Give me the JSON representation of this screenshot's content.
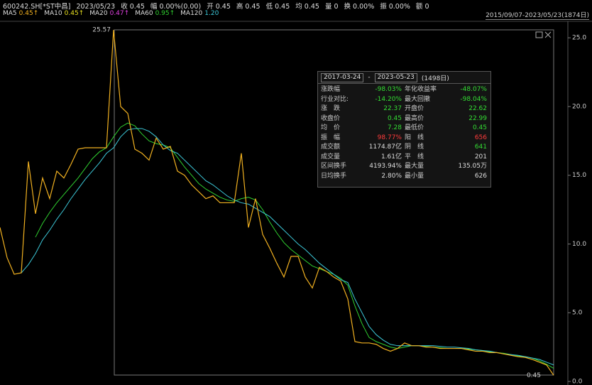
{
  "quote_bar": [
    "600242.SH[*ST中昌]",
    "2023/05/23",
    "收 0.45",
    "幅 0.00%(0.00)",
    "开 0.45",
    "高 0.45",
    "低 0.45",
    "均 0.45",
    "量 0",
    "换 0.00%",
    "振 0.00%",
    "额 0"
  ],
  "range_label": "2015/09/07-2023/05/23(1874日)",
  "stats_panel": {
    "start": "2017-03-24",
    "end": "2023-05-23",
    "days": "(1498日)",
    "cells": [
      {
        "label": "涨跌幅",
        "value": "-98.03%",
        "color": "#33dd33"
      },
      {
        "label": "年化收益率",
        "value": "-48.07%",
        "color": "#33dd33"
      },
      {
        "label": "行业对比:",
        "value": "-14.20%",
        "color": "#33dd33"
      },
      {
        "label": "最大回撤",
        "value": "-98.04%",
        "color": "#33dd33"
      },
      {
        "label": "涨　跌",
        "value": "22.37",
        "color": "#33dd33"
      },
      {
        "label": "开盘价",
        "value": "22.62",
        "color": "#33dd33"
      },
      {
        "label": "收盘价",
        "value": "0.45",
        "color": "#33dd33"
      },
      {
        "label": "最高价",
        "value": "22.99",
        "color": "#33dd33"
      },
      {
        "label": "均　价",
        "value": "7.28",
        "color": "#33dd33"
      },
      {
        "label": "最低价",
        "value": "0.45",
        "color": "#33dd33"
      },
      {
        "label": "振　幅",
        "value": "98.77%",
        "color": "#ff3b3b"
      },
      {
        "label": "阳　线",
        "value": "656",
        "color": "#ff3b3b"
      },
      {
        "label": "成交额",
        "value": "1174.87亿",
        "color": "#dddddd"
      },
      {
        "label": "阴　线",
        "value": "641",
        "color": "#33dd33"
      },
      {
        "label": "成交量",
        "value": "1.61亿",
        "color": "#dddddd"
      },
      {
        "label": "平　线",
        "value": "201",
        "color": "#dddddd"
      },
      {
        "label": "区间换手",
        "value": "4193.94%",
        "color": "#dddddd"
      },
      {
        "label": "最大量",
        "value": "135.05万",
        "color": "#dddddd"
      },
      {
        "label": "日均换手",
        "value": "2.80%",
        "color": "#dddddd"
      },
      {
        "label": "最小量",
        "value": "626",
        "color": "#dddddd"
      }
    ]
  },
  "chart_data": {
    "type": "line",
    "color": "#f0b020",
    "values": [
      11.2,
      9.0,
      7.8,
      7.9,
      16.0,
      12.2,
      14.8,
      13.3,
      15.3,
      14.8,
      15.8,
      16.9,
      17.0,
      17.0,
      17.0,
      17.0,
      25.57,
      20.0,
      19.5,
      16.9,
      16.6,
      16.1,
      17.7,
      16.9,
      17.1,
      15.3,
      15.0,
      14.3,
      13.8,
      13.3,
      13.5,
      13.0,
      13.0,
      13.0,
      16.6,
      11.2,
      13.3,
      10.7,
      9.7,
      8.6,
      7.6,
      9.1,
      9.1,
      7.6,
      6.8,
      8.3,
      8.0,
      7.6,
      7.3,
      6.0,
      2.9,
      2.8,
      2.8,
      2.7,
      2.4,
      2.2,
      2.4,
      2.8,
      2.6,
      2.6,
      2.5,
      2.5,
      2.4,
      2.4,
      2.4,
      2.4,
      2.3,
      2.2,
      2.2,
      2.1,
      2.1,
      2.0,
      1.9,
      1.8,
      1.75,
      1.6,
      1.4,
      1.2,
      0.45
    ],
    "extra_legend": [
      {
        "name": "MA5",
        "label": "0.45↑",
        "color": "#f0b020"
      },
      {
        "name": "MA10",
        "label": "0.45↑",
        "color": "#e8e020"
      },
      {
        "name": "MA20",
        "label": "0.47↑",
        "color": "#e040e0"
      }
    ],
    "series": [
      {
        "name": "MA60",
        "legend_label": "0.95↑",
        "color": "#30d030",
        "values": [
          null,
          null,
          null,
          null,
          null,
          10.5,
          11.5,
          12.3,
          13.0,
          13.6,
          14.2,
          14.8,
          15.5,
          16.2,
          16.7,
          17.0,
          17.8,
          18.5,
          18.8,
          18.6,
          18.0,
          17.5,
          17.3,
          17.2,
          17.0,
          16.3,
          15.6,
          15.0,
          14.4,
          14.0,
          13.7,
          13.4,
          13.2,
          13.1,
          13.3,
          13.4,
          13.2,
          12.5,
          11.6,
          10.8,
          10.1,
          9.6,
          9.2,
          8.8,
          8.4,
          8.2,
          8.0,
          7.8,
          7.5,
          7.0,
          5.5,
          4.2,
          3.2,
          2.9,
          2.7,
          2.5,
          2.4,
          2.5,
          2.6,
          2.6,
          2.55,
          2.5,
          2.45,
          2.4,
          2.4,
          2.4,
          2.35,
          2.3,
          2.25,
          2.15,
          2.1,
          2.05,
          1.95,
          1.85,
          1.8,
          1.7,
          1.5,
          1.25,
          0.95
        ]
      },
      {
        "name": "MA120",
        "legend_label": "1.20",
        "color": "#3cc8d8",
        "values": [
          null,
          null,
          null,
          7.9,
          8.5,
          9.3,
          10.3,
          11.0,
          11.8,
          12.5,
          13.3,
          14.0,
          14.7,
          15.3,
          15.9,
          16.6,
          17.0,
          17.8,
          18.3,
          18.4,
          18.4,
          18.2,
          17.8,
          17.2,
          16.8,
          16.6,
          16.1,
          15.6,
          15.1,
          14.6,
          14.3,
          13.9,
          13.5,
          13.2,
          13.0,
          12.9,
          12.6,
          12.3,
          12.0,
          11.5,
          11.0,
          10.5,
          10.0,
          9.6,
          9.1,
          8.6,
          8.2,
          7.8,
          7.4,
          7.2,
          6.0,
          5.0,
          4.0,
          3.4,
          3.0,
          2.7,
          2.6,
          2.6,
          2.6,
          2.6,
          2.6,
          2.6,
          2.55,
          2.5,
          2.5,
          2.45,
          2.4,
          2.3,
          2.25,
          2.2,
          2.1,
          2.0,
          1.95,
          1.9,
          1.8,
          1.7,
          1.6,
          1.4,
          1.2
        ]
      }
    ],
    "ylim": [
      0,
      26.2
    ],
    "yticks": [
      {
        "value": 0,
        "label": "0.0"
      },
      {
        "value": 5,
        "label": "5.0"
      },
      {
        "value": 10,
        "label": "10.0"
      },
      {
        "value": 15,
        "label": "15.0"
      },
      {
        "value": 20,
        "label": "20.0"
      },
      {
        "value": 25,
        "label": "25.0"
      }
    ],
    "high_index": 16,
    "low_index": 78
  }
}
